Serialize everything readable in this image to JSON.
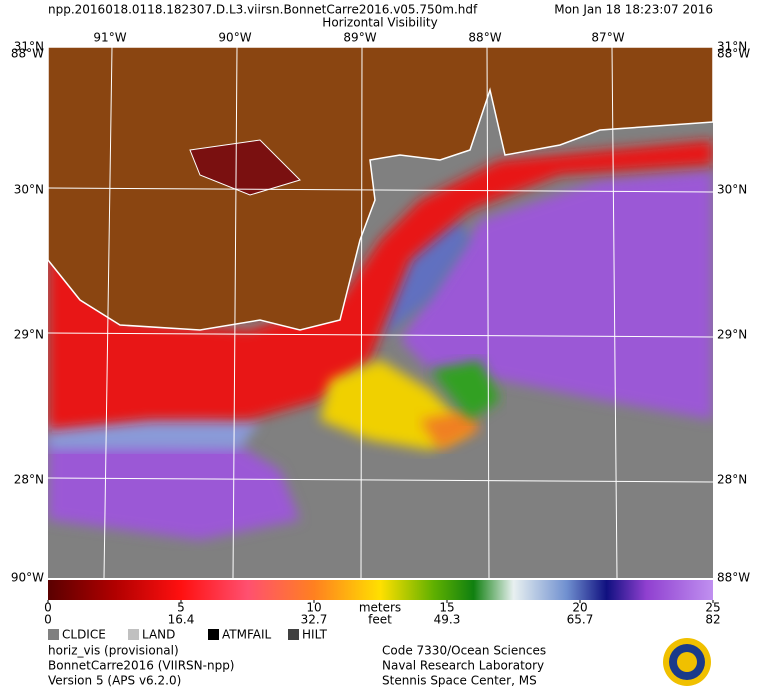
{
  "header": {
    "file": "npp.2016018.0118.182307.D.L3.viirsn.BonnetCarre2016.v05.750m.hdf",
    "product": "Horizontal Visibility",
    "date": "Mon Jan 18 18:23:07 2016"
  },
  "map": {
    "lat_labels": [
      "31°N",
      "30°N",
      "29°N",
      "28°N"
    ],
    "lon_labels": [
      "91°W",
      "90°W",
      "89°W",
      "88°W",
      "87°W"
    ],
    "corner_labels": [
      "88°W",
      "88°W",
      "90°W",
      "88°W"
    ]
  },
  "colorbar": {
    "meters_label": "meters",
    "feet_label": "feet",
    "meters_ticks": [
      0,
      5,
      10,
      15,
      20,
      25
    ],
    "feet_ticks": [
      0,
      16.4,
      32.7,
      49.3,
      65.7,
      82
    ]
  },
  "legend": [
    {
      "name": "CLDICE",
      "color": "#808080"
    },
    {
      "name": "LAND",
      "color": "#c0c0c0"
    },
    {
      "name": "ATMFAIL",
      "color": "#000000"
    },
    {
      "name": "HILT",
      "color": "#404040"
    }
  ],
  "footer": {
    "left": [
      "horiz_vis (provisional)",
      "BonnetCarre2016 (VIIRSN-npp)",
      "Version 5 (APS v6.2.0)"
    ],
    "right": [
      "Code 7330/Ocean Sciences",
      "Naval Research Laboratory",
      "Stennis Space Center, MS"
    ]
  }
}
